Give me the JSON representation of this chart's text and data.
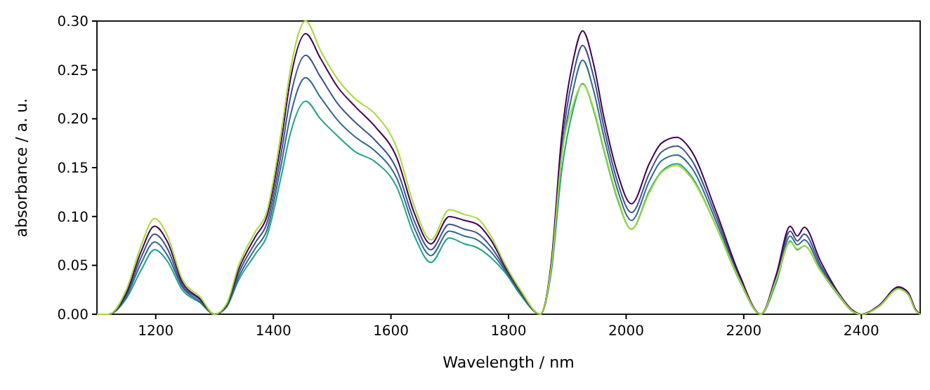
{
  "chart_data": {
    "type": "line",
    "xlabel": "Wavelength / nm",
    "ylabel": "absorbance / a. u.",
    "x": [
      1100,
      1120,
      1150,
      1175,
      1198,
      1220,
      1245,
      1275,
      1300,
      1320,
      1341,
      1370,
      1389,
      1413,
      1429,
      1455,
      1480,
      1510,
      1540,
      1573,
      1610,
      1640,
      1668,
      1699,
      1725,
      1747,
      1770,
      1795,
      1820,
      1854,
      1873,
      1890,
      1910,
      1926,
      1945,
      1962,
      1985,
      2009,
      2040,
      2060,
      2086,
      2110,
      2153,
      2193,
      2229,
      2255,
      2279,
      2291,
      2303,
      2330,
      2360,
      2385,
      2400,
      2430,
      2463,
      2480,
      2492,
      2500
    ],
    "series": [
      {
        "color": "#20a386",
        "values": [
          0,
          0,
          0.016,
          0.045,
          0.066,
          0.054,
          0.025,
          0.012,
          0,
          0.007,
          0.035,
          0.062,
          0.08,
          0.14,
          0.185,
          0.218,
          0.2,
          0.182,
          0.166,
          0.156,
          0.13,
          0.08,
          0.053,
          0.078,
          0.072,
          0.068,
          0.058,
          0.042,
          0.02,
          0,
          0.045,
          0.145,
          0.21,
          0.236,
          0.208,
          0.168,
          0.118,
          0.087,
          0.127,
          0.146,
          0.154,
          0.142,
          0.09,
          0.034,
          0,
          0.032,
          0.075,
          0.066,
          0.07,
          0.045,
          0.02,
          0.003,
          0,
          0.008,
          0.026,
          0.02,
          0.004,
          0
        ]
      },
      {
        "color": "#31688e",
        "values": [
          0,
          0,
          0.018,
          0.052,
          0.074,
          0.06,
          0.028,
          0.013,
          0,
          0.008,
          0.038,
          0.068,
          0.086,
          0.152,
          0.203,
          0.242,
          0.222,
          0.198,
          0.181,
          0.167,
          0.139,
          0.088,
          0.06,
          0.085,
          0.08,
          0.076,
          0.064,
          0.044,
          0.022,
          0,
          0.049,
          0.16,
          0.23,
          0.26,
          0.228,
          0.182,
          0.128,
          0.096,
          0.137,
          0.157,
          0.163,
          0.151,
          0.095,
          0.036,
          0,
          0.035,
          0.08,
          0.071,
          0.076,
          0.048,
          0.021,
          0.003,
          0,
          0.008,
          0.026,
          0.02,
          0.004,
          0
        ]
      },
      {
        "color": "#3b528b",
        "values": [
          0,
          0,
          0.02,
          0.058,
          0.082,
          0.067,
          0.03,
          0.015,
          0,
          0.008,
          0.042,
          0.074,
          0.093,
          0.163,
          0.222,
          0.265,
          0.243,
          0.215,
          0.196,
          0.178,
          0.148,
          0.095,
          0.066,
          0.092,
          0.087,
          0.083,
          0.069,
          0.046,
          0.023,
          0,
          0.052,
          0.17,
          0.245,
          0.275,
          0.242,
          0.192,
          0.136,
          0.104,
          0.145,
          0.166,
          0.172,
          0.159,
          0.1,
          0.038,
          0,
          0.038,
          0.085,
          0.075,
          0.082,
          0.051,
          0.022,
          0.004,
          0,
          0.009,
          0.027,
          0.021,
          0.005,
          0
        ]
      },
      {
        "color": "#440154",
        "values": [
          0,
          0,
          0.022,
          0.064,
          0.09,
          0.074,
          0.033,
          0.016,
          0,
          0.009,
          0.046,
          0.08,
          0.1,
          0.175,
          0.24,
          0.287,
          0.262,
          0.232,
          0.212,
          0.192,
          0.16,
          0.103,
          0.072,
          0.1,
          0.096,
          0.092,
          0.076,
          0.048,
          0.024,
          0,
          0.055,
          0.18,
          0.26,
          0.29,
          0.255,
          0.202,
          0.145,
          0.113,
          0.155,
          0.175,
          0.181,
          0.168,
          0.105,
          0.04,
          0,
          0.04,
          0.09,
          0.08,
          0.089,
          0.055,
          0.023,
          0.004,
          0,
          0.009,
          0.028,
          0.022,
          0.005,
          0
        ]
      },
      {
        "color": "#a5db36",
        "values": [
          0,
          0,
          0.025,
          0.07,
          0.098,
          0.08,
          0.036,
          0.018,
          0,
          0.01,
          0.05,
          0.085,
          0.105,
          0.185,
          0.25,
          0.3,
          0.27,
          0.24,
          0.22,
          0.205,
          0.17,
          0.11,
          0.076,
          0.107,
          0.102,
          0.098,
          0.08,
          0.05,
          0.025,
          0,
          0.05,
          0.16,
          0.215,
          0.235,
          0.21,
          0.17,
          0.12,
          0.087,
          0.125,
          0.145,
          0.152,
          0.14,
          0.09,
          0.035,
          0,
          0.035,
          0.074,
          0.067,
          0.07,
          0.045,
          0.021,
          0.003,
          0,
          0.008,
          0.026,
          0.02,
          0.004,
          0
        ]
      }
    ],
    "xlim": [
      1100,
      2500
    ],
    "xticks": [
      1200,
      1400,
      1600,
      1800,
      2000,
      2200,
      2400
    ],
    "ylim": [
      0,
      0.3
    ],
    "yticks": [
      {
        "value": 0,
        "label": "0.00"
      },
      {
        "value": 0.05,
        "label": "0.05"
      },
      {
        "value": 0.1,
        "label": "0.10"
      },
      {
        "value": 0.15,
        "label": "0.15"
      },
      {
        "value": 0.2,
        "label": "0.20"
      },
      {
        "value": 0.25,
        "label": "0.25"
      },
      {
        "value": 0.3,
        "label": "0.30"
      }
    ],
    "grid": false,
    "marker": "none",
    "line_style": "solid"
  }
}
